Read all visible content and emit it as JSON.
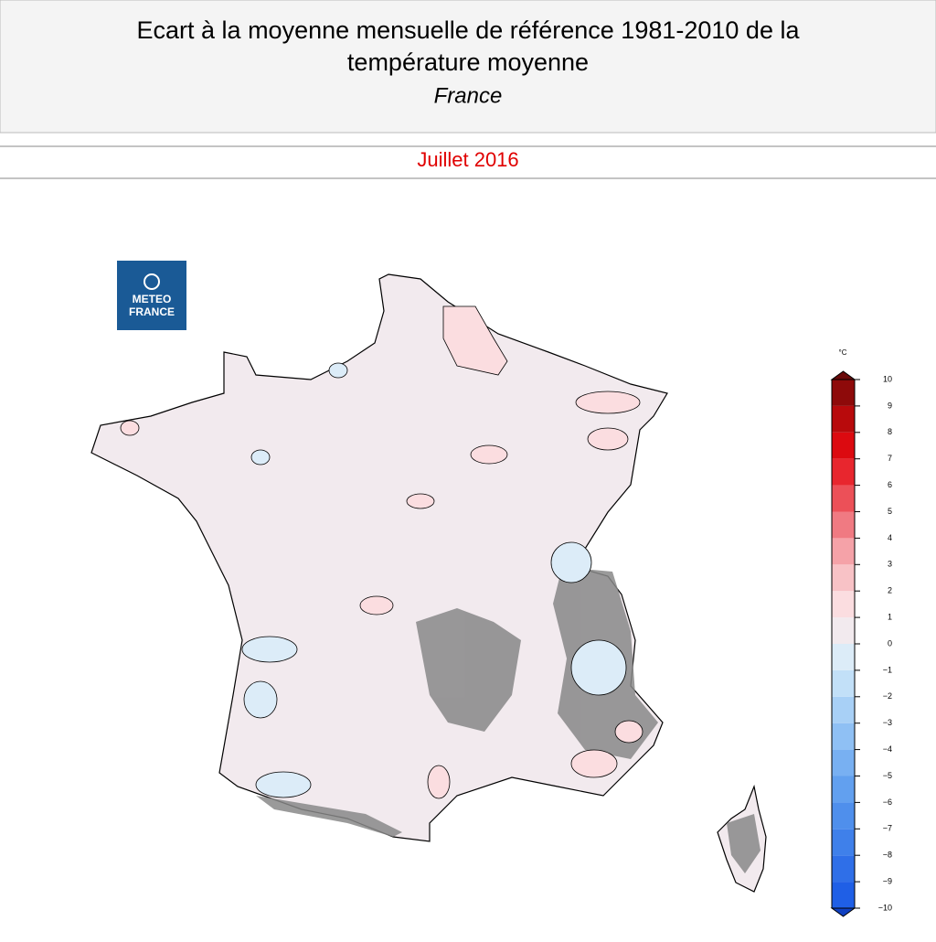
{
  "header": {
    "title": [
      "Ecart à la moyenne mensuelle de référence 1981-2010 de la",
      "température moyenne"
    ],
    "subtitle": "France",
    "period": "Juillet 2016"
  },
  "logo": {
    "lines": [
      "METEO",
      "FRANCE"
    ]
  },
  "colorbar": {
    "unit": "°C",
    "ticks": [
      {
        "value": -10,
        "label": "−10"
      },
      {
        "value": -9,
        "label": "−9"
      },
      {
        "value": -8,
        "label": "−8"
      },
      {
        "value": -7,
        "label": "−7"
      },
      {
        "value": -6,
        "label": "−6"
      },
      {
        "value": -5,
        "label": "−5"
      },
      {
        "value": -4,
        "label": "−4"
      },
      {
        "value": -3,
        "label": "−3"
      },
      {
        "value": -2,
        "label": "−2"
      },
      {
        "value": -1,
        "label": "−1"
      },
      0,
      1,
      2,
      3,
      4,
      5,
      6,
      7,
      8,
      9,
      10
    ],
    "colors": [
      "#1f5fe6",
      "#2f6fe8",
      "#3f80ea",
      "#4f8fec",
      "#62a0ef",
      "#78b0f2",
      "#8fc0f4",
      "#a8d0f6",
      "#c2e0f8",
      "#dcecf8",
      "#f2eaee",
      "#fbdde0",
      "#f8c2c6",
      "#f5a2a8",
      "#f07a82",
      "#ec5058",
      "#e8262e",
      "#dc0a10",
      "#b80a0c",
      "#8e0a0a"
    ],
    "low_color": "#1040c0",
    "high_color": "#6a0a0a"
  }
}
